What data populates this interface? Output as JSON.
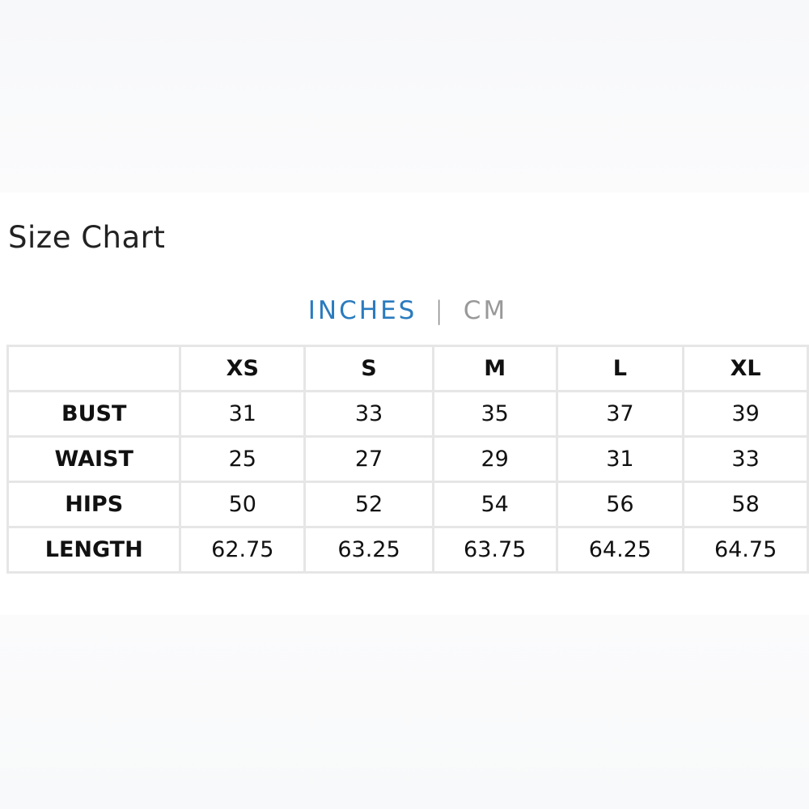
{
  "title": "Size Chart",
  "units": {
    "active": "INCHES",
    "separator": "|",
    "inactive": "CM",
    "active_color": "#2a7bbf"
  },
  "table": {
    "headers": [
      "",
      "XS",
      "S",
      "M",
      "L",
      "XL"
    ],
    "rows": [
      {
        "label": "BUST",
        "values": [
          "31",
          "33",
          "35",
          "37",
          "39"
        ]
      },
      {
        "label": "WAIST",
        "values": [
          "25",
          "27",
          "29",
          "31",
          "33"
        ]
      },
      {
        "label": "HIPS",
        "values": [
          "50",
          "52",
          "54",
          "56",
          "58"
        ]
      },
      {
        "label": "LENGTH",
        "values": [
          "62.75",
          "63.25",
          "63.75",
          "64.25",
          "64.75"
        ]
      }
    ]
  }
}
